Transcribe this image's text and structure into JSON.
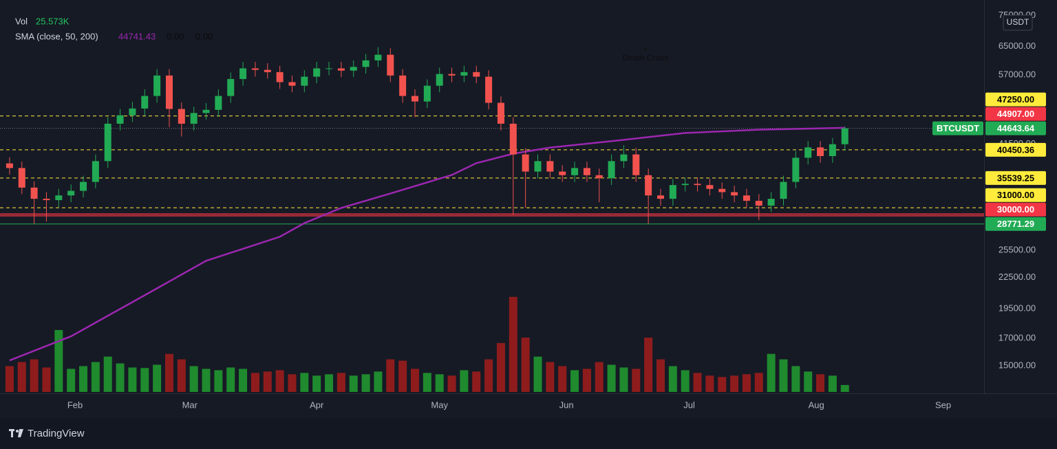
{
  "chart_data": {
    "type": "candlestick",
    "scale": "log",
    "grid": false,
    "currency": "USDT",
    "up_color": "#22ab55",
    "down_color": "#f2524e",
    "volume_up_color": "#1f8a2e",
    "volume_down_color": "#8f1c1c",
    "xlim": [
      -0.78,
      79.33
    ],
    "xticks": [
      {
        "value": 5.33,
        "label": "Feb"
      },
      {
        "value": 14.67,
        "label": "Mar"
      },
      {
        "value": 25,
        "label": "Apr"
      },
      {
        "value": 35,
        "label": "May"
      },
      {
        "value": 45.33,
        "label": "Jun"
      },
      {
        "value": 55.33,
        "label": "Jul"
      },
      {
        "value": 65.67,
        "label": "Aug"
      },
      {
        "value": 76,
        "label": "Sep"
      }
    ],
    "ylim": [
      13300,
      80500
    ],
    "yticks": [
      {
        "value": 75000,
        "label": "75000.00"
      },
      {
        "value": 65000,
        "label": "65000.00"
      },
      {
        "value": 57000,
        "label": "57000.00"
      },
      {
        "value": 41500,
        "label": "41500.00"
      },
      {
        "value": 25500,
        "label": "25500.00"
      },
      {
        "value": 22500,
        "label": "22500.00"
      },
      {
        "value": 19500,
        "label": "19500.00"
      },
      {
        "value": 17000,
        "label": "17000.00"
      },
      {
        "value": 15000,
        "label": "15000.00"
      }
    ],
    "candles": {
      "open": [
        38000,
        37200,
        34000,
        32300,
        32100,
        32800,
        33500,
        34900,
        38400,
        45600,
        47400,
        48900,
        51800,
        56900,
        48800,
        45600,
        47900,
        48600,
        51800,
        56000,
        58800,
        58400,
        57800,
        55200,
        54300,
        56600,
        58800,
        58800,
        58200,
        59200,
        61000,
        62600,
        56900,
        51800,
        50500,
        54300,
        57300,
        56900,
        57800,
        56600,
        50200,
        45600,
        39600,
        36600,
        38400,
        36600,
        36000,
        37200,
        36000,
        35500,
        38400,
        39600,
        36000,
        32800,
        32300,
        34400,
        34600,
        34400,
        33800,
        33300,
        32800,
        32000,
        31300,
        32300,
        34900,
        39000,
        40900,
        39300,
        41500
      ],
      "high": [
        39100,
        38300,
        35000,
        33300,
        33800,
        34500,
        35900,
        39600,
        47000,
        48800,
        50400,
        53400,
        58600,
        58600,
        50300,
        49300,
        50100,
        53400,
        57700,
        60600,
        60600,
        60200,
        59500,
        56900,
        58300,
        60600,
        60600,
        60600,
        61000,
        62800,
        64800,
        64500,
        58600,
        53400,
        55900,
        59000,
        59000,
        59500,
        59500,
        58300,
        51700,
        47000,
        40800,
        39600,
        39600,
        37700,
        38300,
        38300,
        37100,
        39600,
        41300,
        40800,
        37100,
        33800,
        35400,
        35600,
        35600,
        35400,
        34800,
        34300,
        33800,
        33000,
        33300,
        35900,
        40200,
        42100,
        42100,
        42700,
        45000
      ],
      "low": [
        36100,
        33000,
        28800,
        29100,
        31100,
        31800,
        32500,
        33900,
        37200,
        44200,
        46000,
        47400,
        50200,
        44900,
        43000,
        44200,
        46500,
        47100,
        50200,
        54300,
        56600,
        56100,
        53500,
        52700,
        52700,
        54900,
        57000,
        56500,
        56500,
        57400,
        59200,
        55200,
        50200,
        47000,
        49000,
        52700,
        55200,
        55200,
        54900,
        48700,
        44200,
        30000,
        31000,
        35500,
        35500,
        34900,
        34900,
        34900,
        31800,
        34400,
        37200,
        34900,
        28800,
        31300,
        31300,
        33400,
        33400,
        32800,
        32300,
        31800,
        31000,
        29300,
        30400,
        31300,
        33900,
        37800,
        38100,
        38100,
        40300
      ],
      "close": [
        37200,
        34000,
        32300,
        32100,
        32800,
        33500,
        34900,
        38400,
        45600,
        47400,
        48900,
        51800,
        56900,
        48800,
        45600,
        47900,
        48600,
        51800,
        56000,
        58800,
        58400,
        57800,
        55200,
        54300,
        56600,
        58800,
        58800,
        58200,
        59200,
        61000,
        62600,
        56900,
        51800,
        50500,
        54300,
        57300,
        56900,
        57800,
        56600,
        50200,
        45600,
        39600,
        36600,
        38400,
        36600,
        36000,
        37200,
        36000,
        35500,
        38400,
        39600,
        36000,
        32800,
        32300,
        34400,
        34600,
        34400,
        33800,
        33300,
        32800,
        32000,
        31300,
        32300,
        34900,
        39000,
        40900,
        39300,
        41500,
        44643.64
      ]
    },
    "volume": {
      "name": "Vol",
      "ylim": [
        0,
        1443
      ],
      "values": [
        95,
        110,
        120,
        90,
        228,
        85,
        95,
        110,
        130,
        105,
        90,
        88,
        100,
        140,
        120,
        95,
        85,
        80,
        90,
        85,
        70,
        75,
        80,
        65,
        70,
        60,
        65,
        70,
        60,
        65,
        75,
        120,
        115,
        85,
        70,
        65,
        60,
        80,
        75,
        120,
        180,
        350,
        200,
        130,
        110,
        95,
        80,
        85,
        110,
        100,
        90,
        85,
        200,
        120,
        95,
        80,
        70,
        60,
        55,
        60,
        65,
        70,
        140,
        120,
        95,
        75,
        65,
        60,
        25.573
      ],
      "last_label": "25.573K"
    },
    "sma": {
      "name": "SMA (close, 50, 200)",
      "color": "#9c27b0",
      "x": [
        0,
        5,
        10,
        16,
        22,
        24,
        27,
        31,
        36,
        38,
        41,
        44,
        50,
        55,
        61,
        68
      ],
      "values": [
        15370,
        17170,
        20090,
        24290,
        27120,
        28880,
        30970,
        33100,
        36030,
        38040,
        39740,
        40870,
        42340,
        43700,
        44370,
        44741.43
      ],
      "last_label": "44741.43",
      "other_labels": [
        "0.00",
        "0.00"
      ]
    },
    "levels": [
      {
        "value": 47250,
        "label": "47250.00",
        "color": "#ffeb3b",
        "text_color": "#000000",
        "style": "dashed"
      },
      {
        "value": 44907,
        "label": "44907.00",
        "color": "#f23645",
        "text_color": "#ffffff",
        "style": "none"
      },
      {
        "value": 44643.64,
        "label": "44643.64",
        "name": "BTCUSDT",
        "color": "#22ab55",
        "text_color": "#ffffff",
        "style": "dotted"
      },
      {
        "value": 40450.36,
        "label": "40450.36",
        "color": "#ffeb3b",
        "text_color": "#000000",
        "style": "dashed"
      },
      {
        "value": 35539.25,
        "label": "35539.25",
        "color": "#ffeb3b",
        "text_color": "#000000",
        "style": "dashed"
      },
      {
        "value": 31000,
        "label": "31000.00",
        "color": "#ffeb3b",
        "text_color": "#000000",
        "style": "dashed"
      },
      {
        "value": 30000,
        "label": "30000.00",
        "color": "#f23645",
        "text_color": "#ffffff",
        "style": "band"
      },
      {
        "value": 28771.29,
        "label": "28771.29",
        "color": "#22ab55",
        "text_color": "#ffffff",
        "style": "solid"
      }
    ],
    "annotations": [
      {
        "text": "Death Cross"
      }
    ]
  },
  "brand": "TradingView"
}
